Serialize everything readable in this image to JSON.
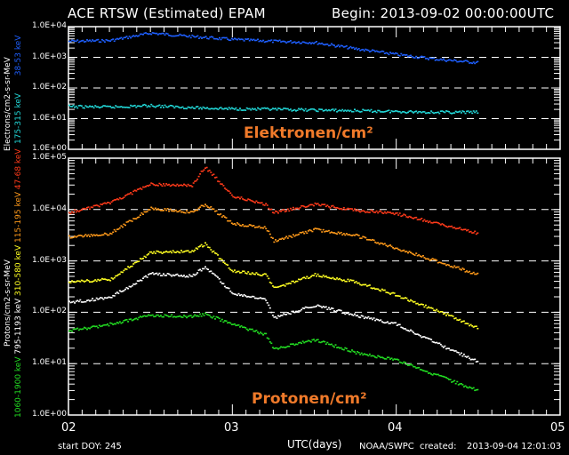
{
  "header": {
    "title": "ACE RTSW (Estimated) EPAM",
    "begin": "Begin: 2013-09-02 00:00:00UTC"
  },
  "footer": {
    "start_doy": "start DOY:  245",
    "xlabel": "UTC(days)",
    "source": "NOAA/SWPC",
    "created_label": "created:",
    "created": "2013-09-04 12:01:03"
  },
  "overlays": {
    "electrons": "Elektronen/cm²",
    "protons": "Protonen/cm²"
  },
  "colors": {
    "e_38_53": "#1e5fff",
    "e_175_315": "#22d8d8",
    "p_47_68": "#ff3a1a",
    "p_115_195": "#ff9a1a",
    "p_310_580": "#ffff22",
    "p_795_1193": "#ffffff",
    "p_1060_1900": "#22dd22",
    "overlay_text": "#f07a2a"
  },
  "chart_data": [
    {
      "type": "scatter",
      "title": "ACE RTSW (Estimated) EPAM - Electrons",
      "xlabel": "UTC(days)",
      "ylabel": "Electrons/cm2-s-sr-MeV",
      "yscale": "log",
      "ylim": [
        1,
        10000
      ],
      "ytick_labels": [
        "1.0E+04",
        "1.0E+03",
        "1.0E+02",
        "1.0E+01",
        "1.0E+00"
      ],
      "xlim": [
        2,
        5
      ],
      "xtick_labels": [
        "02",
        "03",
        "04",
        "05"
      ],
      "grid": "dashed at decades",
      "x": [
        2.0,
        2.25,
        2.5,
        2.75,
        3.0,
        3.25,
        3.5,
        3.75,
        4.0,
        4.25,
        4.5
      ],
      "series": [
        {
          "name": "38-53 keV",
          "values": [
            3500,
            3700,
            6500,
            5000,
            4000,
            3500,
            3200,
            2000,
            1300,
            900,
            700
          ]
        },
        {
          "name": "175-315 keV",
          "values": [
            26,
            25,
            28,
            24,
            22,
            21,
            20,
            19,
            18,
            17,
            17
          ]
        }
      ]
    },
    {
      "type": "scatter",
      "title": "ACE RTSW (Estimated) EPAM - Protons",
      "xlabel": "UTC(days)",
      "ylabel": "Protons/cm2-s-sr-MeV",
      "yscale": "log",
      "ylim": [
        1,
        100000
      ],
      "ytick_labels": [
        "1.0E+05",
        "1.0E+04",
        "1.0E+03",
        "1.0E+02",
        "1.0E+01",
        "1.0E+00"
      ],
      "xlim": [
        2,
        5
      ],
      "xtick_labels": [
        "02",
        "03",
        "04",
        "05"
      ],
      "grid": "dashed at decades",
      "x": [
        2.0,
        2.25,
        2.5,
        2.75,
        2.83,
        3.0,
        3.2,
        3.25,
        3.5,
        3.75,
        4.0,
        4.25,
        4.5
      ],
      "series": [
        {
          "name": "47-68 keV",
          "values": [
            9000,
            14000,
            32000,
            30000,
            70000,
            19000,
            13000,
            9000,
            13000,
            10000,
            8500,
            5500,
            3500
          ]
        },
        {
          "name": "115-195 keV",
          "values": [
            3000,
            3500,
            11000,
            9000,
            13000,
            5500,
            4500,
            2500,
            4200,
            3200,
            1800,
            1000,
            550
          ]
        },
        {
          "name": "310-580 keV",
          "values": [
            400,
            450,
            1500,
            1600,
            2200,
            650,
            550,
            300,
            550,
            400,
            220,
            110,
            50
          ]
        },
        {
          "name": "795-1193 keV",
          "values": [
            160,
            200,
            580,
            520,
            800,
            240,
            180,
            80,
            140,
            90,
            60,
            25,
            11
          ]
        },
        {
          "name": "1060-1900 keV",
          "values": [
            45,
            60,
            90,
            85,
            95,
            60,
            38,
            20,
            30,
            17,
            12,
            6,
            3
          ]
        }
      ]
    }
  ]
}
